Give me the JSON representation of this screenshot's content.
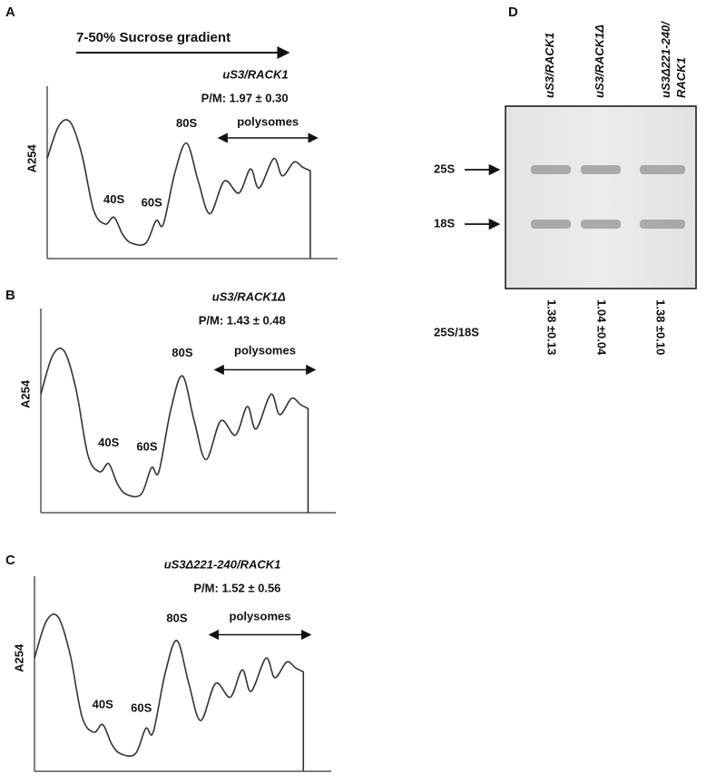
{
  "gradient_label": "7-50% Sucrose gradient",
  "panels": [
    {
      "letter": "A",
      "strain": "uS3/RACK1",
      "ratio": "P/M: 1.97 ± 0.30",
      "y_label": "A254",
      "peaks": [
        "40S",
        "60S",
        "80S"
      ],
      "polysomes": "polysomes"
    },
    {
      "letter": "B",
      "strain": "uS3/RACK1Δ",
      "ratio": "P/M: 1.43 ± 0.48",
      "y_label": "A254",
      "peaks": [
        "40S",
        "60S",
        "80S"
      ],
      "polysomes": "polysomes"
    },
    {
      "letter": "C",
      "strain": "uS3Δ221-240/RACK1",
      "ratio": "P/M: 1.52 ± 0.56",
      "y_label": "A254",
      "peaks": [
        "40S",
        "60S",
        "80S"
      ],
      "polysomes": "polysomes"
    }
  ],
  "gel": {
    "letter": "D",
    "lanes": [
      {
        "lines": [
          "uS3/RACK1"
        ]
      },
      {
        "lines": [
          "uS3/RACK1Δ"
        ]
      },
      {
        "lines": [
          "uS3Δ221-240/",
          "RACK1"
        ]
      }
    ],
    "bands": [
      "25S",
      "18S"
    ],
    "ratio_label": "25S/18S",
    "ratios": [
      "1.38 ±0.13",
      "1.04 ±0.04",
      "1.38 ±0.10"
    ]
  }
}
